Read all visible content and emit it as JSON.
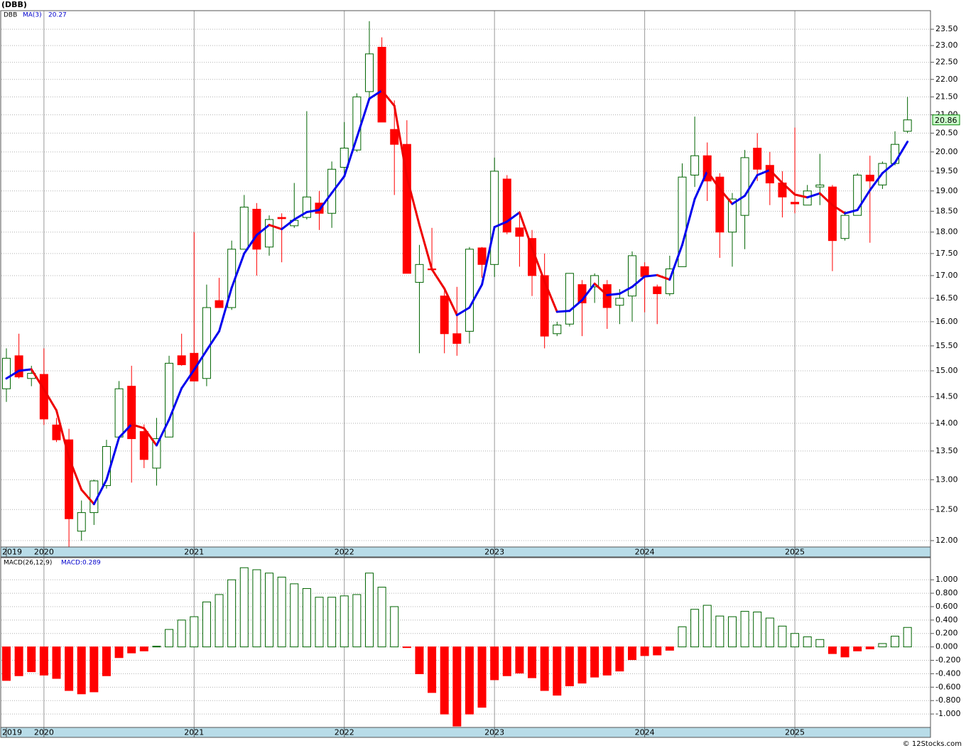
{
  "chart_data": [
    {
      "type": "candlestick",
      "title": "(DBB)",
      "log_scale": true,
      "grid": true,
      "categories": [
        "2019",
        null,
        null,
        "2020",
        null,
        null,
        null,
        null,
        null,
        null,
        null,
        null,
        null,
        null,
        null,
        "2021",
        null,
        null,
        null,
        null,
        null,
        null,
        null,
        null,
        null,
        null,
        null,
        "2022",
        null,
        null,
        null,
        null,
        null,
        null,
        null,
        null,
        null,
        null,
        null,
        "2023",
        null,
        null,
        null,
        null,
        null,
        null,
        null,
        null,
        null,
        null,
        null,
        "2024",
        null,
        null,
        null,
        null,
        null,
        null,
        null,
        null,
        null,
        null,
        null,
        "2025",
        null,
        null,
        null,
        null,
        null,
        null,
        null,
        null,
        null
      ],
      "ylim": [
        11.9,
        24.08
      ],
      "yticks": [
        {
          "value": 12,
          "label": "12.00"
        },
        {
          "value": 12.5,
          "label": "12.50"
        },
        {
          "value": 13,
          "label": "13.00"
        },
        {
          "value": 13.5,
          "label": "13.50"
        },
        {
          "value": 14,
          "label": "14.00"
        },
        {
          "value": 14.5,
          "label": "14.50"
        },
        {
          "value": 15,
          "label": "15.00"
        },
        {
          "value": 15.5,
          "label": "15.50"
        },
        {
          "value": 16,
          "label": "16.00"
        },
        {
          "value": 16.5,
          "label": "16.50"
        },
        {
          "value": 17,
          "label": "17.00"
        },
        {
          "value": 17.5,
          "label": "17.50"
        },
        {
          "value": 18,
          "label": "18.00"
        },
        {
          "value": 18.5,
          "label": "18.50"
        },
        {
          "value": 19,
          "label": "19.00"
        },
        {
          "value": 19.5,
          "label": "19.50"
        },
        {
          "value": 20,
          "label": "20.00"
        },
        {
          "value": 20.5,
          "label": "20.50"
        },
        {
          "value": 21,
          "label": "21.00"
        },
        {
          "value": 21.5,
          "label": "21.50"
        },
        {
          "value": 22,
          "label": "22.00"
        },
        {
          "value": 22.5,
          "label": "22.50"
        },
        {
          "value": 23,
          "label": "23.00"
        },
        {
          "value": 23.5,
          "label": "23.50"
        }
      ],
      "series": [
        {
          "name": "DBB",
          "up_color": "#006400",
          "down_color": "#ff0000",
          "open": [
            14.65,
            15.3,
            14.85,
            14.93,
            13.97,
            13.7,
            12.15,
            12.45,
            12.9,
            13.75,
            14.7,
            13.85,
            13.2,
            13.75,
            15.3,
            15.35,
            14.85,
            16.45,
            16.3,
            17.6,
            18.55,
            17.65,
            18.35,
            18.15,
            18.35,
            18.7,
            18.45,
            19.6,
            20.05,
            21.65,
            22.95,
            20.6,
            20.2,
            16.85,
            17.15,
            16.55,
            15.75,
            15.8,
            17.63,
            17.25,
            19.3,
            18.1,
            17.85,
            17.0,
            15.75,
            15.95,
            16.8,
            16.75,
            16.8,
            16.35,
            16.55,
            17.2,
            16.75,
            16.6,
            17.2,
            19.4,
            19.9,
            19.35,
            18.0,
            18.4,
            20.1,
            19.65,
            19.2,
            18.72,
            18.65,
            19.1,
            19.1,
            17.85,
            18.4,
            19.4,
            19.15,
            19.7,
            20.55
          ],
          "high": [
            15.45,
            15.75,
            15.1,
            15.45,
            14.1,
            13.9,
            12.65,
            13.0,
            13.7,
            14.8,
            15.1,
            13.98,
            14.1,
            15.3,
            15.75,
            18.0,
            16.8,
            16.95,
            17.8,
            18.9,
            18.7,
            18.4,
            18.45,
            19.2,
            21.1,
            19.0,
            19.75,
            20.8,
            21.6,
            23.75,
            23.25,
            21.4,
            20.85,
            17.7,
            18.1,
            16.7,
            16.75,
            17.65,
            17.65,
            19.85,
            19.4,
            18.5,
            18.05,
            17.5,
            16.0,
            17.05,
            16.9,
            17.05,
            16.9,
            16.7,
            17.55,
            17.3,
            16.8,
            17.45,
            19.7,
            20.95,
            20.25,
            19.45,
            18.95,
            20.05,
            20.5,
            20.0,
            19.5,
            20.65,
            19.15,
            19.95,
            19.15,
            18.5,
            19.45,
            19.9,
            19.75,
            20.55,
            21.5
          ],
          "low": [
            14.4,
            14.85,
            14.7,
            13.97,
            13.66,
            11.9,
            12.0,
            12.25,
            12.85,
            13.7,
            12.95,
            13.2,
            12.9,
            13.75,
            15.1,
            14.8,
            14.7,
            16.3,
            16.25,
            17.6,
            17.0,
            17.45,
            17.3,
            18.1,
            18.3,
            18.05,
            18.1,
            19.45,
            20.0,
            21.45,
            20.8,
            18.9,
            17.05,
            15.35,
            17.1,
            15.35,
            15.3,
            15.55,
            16.95,
            16.97,
            17.95,
            17.2,
            16.55,
            15.45,
            15.7,
            15.9,
            15.7,
            16.4,
            15.85,
            15.95,
            16.0,
            16.2,
            15.95,
            16.55,
            17.2,
            19.1,
            18.75,
            17.4,
            17.2,
            17.6,
            19.25,
            18.65,
            18.35,
            18.45,
            18.65,
            18.65,
            17.1,
            17.8,
            18.4,
            17.75,
            19.05,
            19.65,
            20.5
          ],
          "close": [
            15.25,
            14.88,
            14.95,
            14.08,
            13.7,
            12.35,
            12.45,
            12.98,
            13.58,
            14.65,
            13.72,
            13.35,
            13.72,
            15.15,
            15.12,
            14.8,
            16.3,
            16.3,
            17.6,
            18.6,
            17.6,
            18.3,
            18.32,
            18.28,
            18.85,
            18.45,
            19.55,
            20.1,
            21.5,
            22.75,
            20.8,
            20.2,
            17.05,
            17.25,
            17.13,
            15.75,
            15.55,
            17.6,
            17.25,
            19.5,
            18.0,
            17.9,
            17.0,
            15.7,
            15.93,
            17.05,
            16.4,
            17.0,
            16.3,
            16.5,
            17.45,
            16.98,
            16.6,
            17.15,
            19.35,
            19.9,
            19.25,
            18.0,
            18.8,
            19.85,
            19.55,
            19.2,
            18.85,
            18.68,
            19.0,
            19.15,
            17.8,
            18.4,
            19.4,
            19.25,
            19.7,
            20.2,
            20.86
          ]
        },
        {
          "name": "MA(3)",
          "up_color": "#0000ee",
          "down_color": "#ee0000",
          "values": [
            14.85,
            15.0,
            15.03,
            14.64,
            14.24,
            13.38,
            12.83,
            12.59,
            13.0,
            13.74,
            13.98,
            13.91,
            13.6,
            14.07,
            14.66,
            15.02,
            15.41,
            15.8,
            16.73,
            17.5,
            17.93,
            18.17,
            18.07,
            18.3,
            18.48,
            18.53,
            18.95,
            19.37,
            20.38,
            21.45,
            21.68,
            21.25,
            19.35,
            18.17,
            17.14,
            16.71,
            16.14,
            16.3,
            16.8,
            18.12,
            18.25,
            18.47,
            17.63,
            16.87,
            16.21,
            16.23,
            16.46,
            16.82,
            16.57,
            16.6,
            16.75,
            16.98,
            17.01,
            16.91,
            17.7,
            18.8,
            19.5,
            19.05,
            18.68,
            18.88,
            19.4,
            19.53,
            19.2,
            18.91,
            18.84,
            18.94,
            18.65,
            18.45,
            18.53,
            19.02,
            19.45,
            19.72,
            20.27
          ]
        }
      ]
    },
    {
      "type": "bar",
      "name": "MACD(26,12,9)",
      "label": "MACD:0.289",
      "grid": true,
      "up_color": "#006400",
      "down_color": "#ff0000",
      "ylim": [
        -1.2,
        1.33
      ],
      "yticks": [
        {
          "value": -1,
          "label": "-1.000"
        },
        {
          "value": -0.8,
          "label": "-0.800"
        },
        {
          "value": -0.6,
          "label": "-0.600"
        },
        {
          "value": -0.4,
          "label": "-0.400"
        },
        {
          "value": -0.2,
          "label": "-0.200"
        },
        {
          "value": 0,
          "label": "0.000"
        },
        {
          "value": 0.2,
          "label": "0.200"
        },
        {
          "value": 0.4,
          "label": "0.400"
        },
        {
          "value": 0.6,
          "label": "0.600"
        },
        {
          "value": 0.8,
          "label": "0.800"
        },
        {
          "value": 1,
          "label": "1.000"
        }
      ],
      "values": [
        -0.5,
        -0.43,
        -0.37,
        -0.42,
        -0.47,
        -0.65,
        -0.7,
        -0.67,
        -0.43,
        -0.16,
        -0.09,
        -0.06,
        0.01,
        0.26,
        0.4,
        0.45,
        0.67,
        0.78,
        1.0,
        1.18,
        1.15,
        1.1,
        1.04,
        0.94,
        0.87,
        0.74,
        0.74,
        0.76,
        0.78,
        1.1,
        0.89,
        0.6,
        -0.01,
        -0.4,
        -0.68,
        -1.0,
        -1.18,
        -1.0,
        -0.9,
        -0.49,
        -0.43,
        -0.39,
        -0.46,
        -0.65,
        -0.72,
        -0.58,
        -0.54,
        -0.45,
        -0.42,
        -0.36,
        -0.19,
        -0.13,
        -0.12,
        -0.05,
        0.3,
        0.56,
        0.62,
        0.46,
        0.45,
        0.53,
        0.52,
        0.43,
        0.31,
        0.2,
        0.15,
        0.11,
        -0.1,
        -0.15,
        -0.06,
        -0.03,
        0.05,
        0.16,
        0.29
      ]
    }
  ],
  "footer": "© 12Stocks.com"
}
